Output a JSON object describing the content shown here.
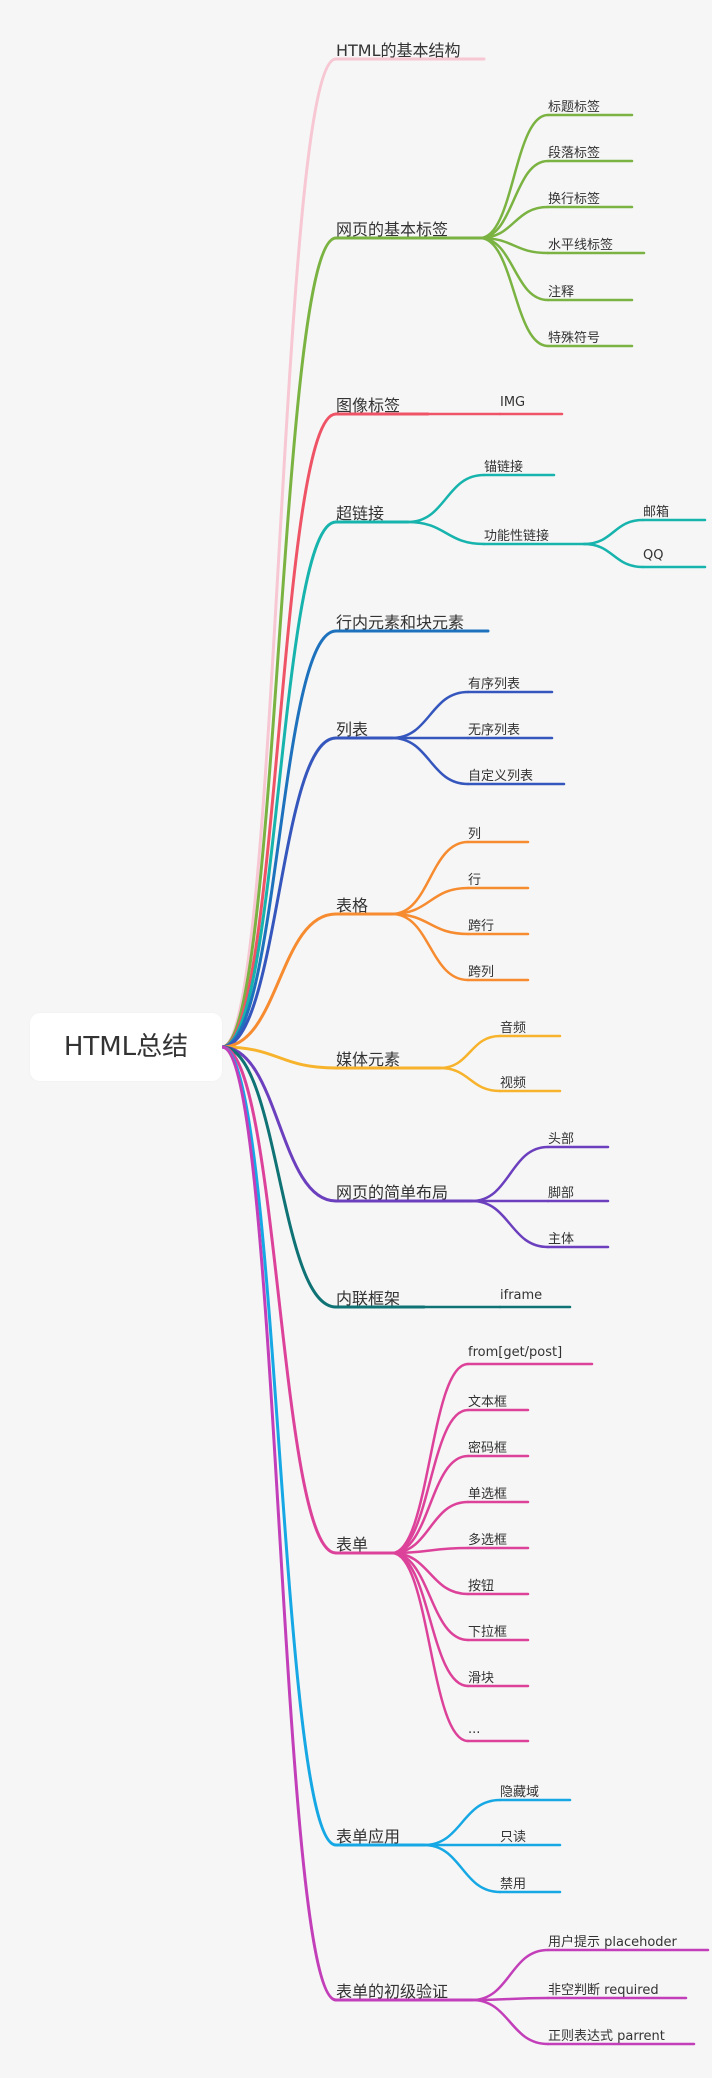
{
  "root": {
    "label": "HTML总结"
  },
  "branches": [
    {
      "label": "HTML的基本结构",
      "color": "#f7c7d3",
      "children": []
    },
    {
      "label": "网页的基本标签",
      "color": "#7bb342",
      "children": [
        {
          "label": "标题标签"
        },
        {
          "label": "段落标签"
        },
        {
          "label": "换行标签"
        },
        {
          "label": "水平线标签"
        },
        {
          "label": "注释"
        },
        {
          "label": "特殊符号"
        }
      ]
    },
    {
      "label": "图像标签",
      "color": "#ef5466",
      "children": [
        {
          "label": "IMG"
        }
      ]
    },
    {
      "label": "超链接",
      "color": "#17b3ad",
      "children": [
        {
          "label": "锚链接"
        },
        {
          "label": "功能性链接",
          "children": [
            {
              "label": "邮箱"
            },
            {
              "label": "QQ"
            }
          ]
        }
      ]
    },
    {
      "label": "行内元素和块元素",
      "color": "#1e72bd",
      "children": []
    },
    {
      "label": "列表",
      "color": "#3556bd",
      "children": [
        {
          "label": "有序列表"
        },
        {
          "label": "无序列表"
        },
        {
          "label": "自定义列表"
        }
      ]
    },
    {
      "label": "表格",
      "color": "#f68b30",
      "children": [
        {
          "label": "列"
        },
        {
          "label": "行"
        },
        {
          "label": "跨行"
        },
        {
          "label": "跨列"
        }
      ]
    },
    {
      "label": "媒体元素",
      "color": "#f7b32b",
      "children": [
        {
          "label": "音频"
        },
        {
          "label": "视频"
        }
      ]
    },
    {
      "label": "网页的简单布局",
      "color": "#6b3fbd",
      "children": [
        {
          "label": "头部"
        },
        {
          "label": "脚部"
        },
        {
          "label": "主体"
        }
      ]
    },
    {
      "label": "内联框架",
      "color": "#0f7274",
      "children": [
        {
          "label": "iframe"
        }
      ]
    },
    {
      "label": "表单",
      "color": "#dd429a",
      "children": [
        {
          "label": "from[get/post]"
        },
        {
          "label": "文本框"
        },
        {
          "label": "密码框"
        },
        {
          "label": "单选框"
        },
        {
          "label": "多选框"
        },
        {
          "label": "按钮"
        },
        {
          "label": "下拉框"
        },
        {
          "label": "滑块"
        },
        {
          "label": "..."
        }
      ]
    },
    {
      "label": "表单应用",
      "color": "#16a8e4",
      "children": [
        {
          "label": "隐藏域"
        },
        {
          "label": "只读"
        },
        {
          "label": "禁用"
        }
      ]
    },
    {
      "label": "表单的初级验证",
      "color": "#c23fb9",
      "children": [
        {
          "label": "用户提示 placehoder"
        },
        {
          "label": "非空判断 required"
        },
        {
          "label": "正则表达式 parrent"
        }
      ]
    }
  ]
}
